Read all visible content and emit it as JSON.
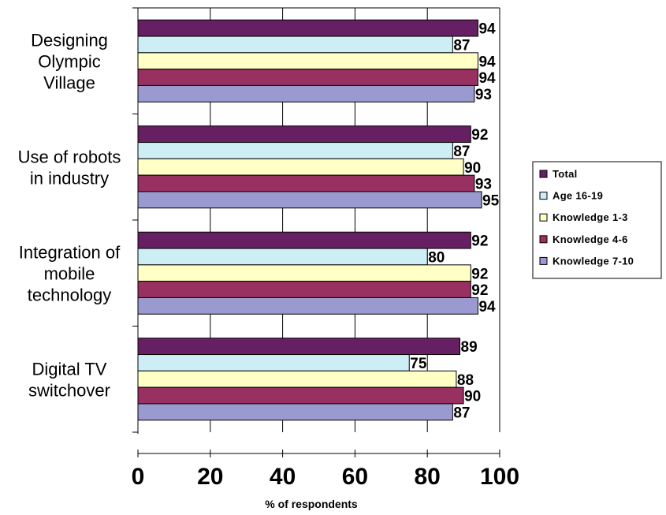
{
  "chart_data": {
    "type": "bar",
    "orientation": "horizontal",
    "title": "",
    "xlabel": "% of respondents",
    "ylabel": "",
    "xlim": [
      0,
      100
    ],
    "xticks": [
      0,
      20,
      40,
      60,
      80,
      100
    ],
    "grid": true,
    "legend_position": "right",
    "categories": [
      "Designing Olympic Village",
      "Use of robots in industry",
      "Integration of mobile technology",
      "Digital TV switchover"
    ],
    "category_lines": [
      [
        "Designing",
        "Olympic",
        "Village"
      ],
      [
        "Use of robots",
        "in industry"
      ],
      [
        "Integration of",
        "mobile",
        "technology"
      ],
      [
        "Digital TV",
        "switchover"
      ]
    ],
    "series": [
      {
        "name": "Total",
        "color": "#661f63",
        "values": [
          94,
          92,
          92,
          89
        ]
      },
      {
        "name": "Age  16-19",
        "color": "#cdeef4",
        "values": [
          87,
          87,
          80,
          75
        ]
      },
      {
        "name": "Knowledge 1-3",
        "color": "#ffffc6",
        "values": [
          94,
          90,
          92,
          88
        ]
      },
      {
        "name": "Knowledge 4-6",
        "color": "#993062",
        "values": [
          94,
          93,
          92,
          90
        ]
      },
      {
        "name": "Knowledge 7-10",
        "color": "#9a9ad0",
        "values": [
          93,
          95,
          94,
          87
        ]
      }
    ]
  }
}
